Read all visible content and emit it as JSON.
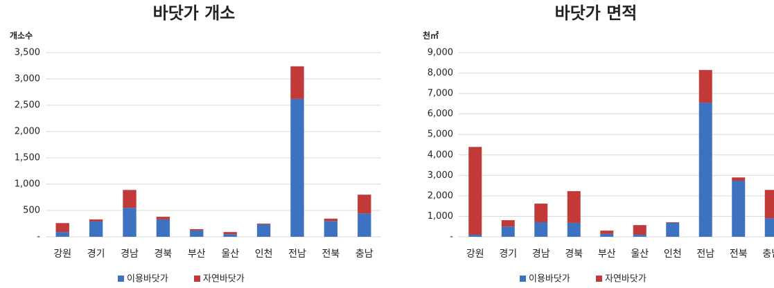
{
  "chart_data": [
    {
      "type": "stacked_bar",
      "title": "바닷가 개소",
      "y_label": "개소수",
      "categories": [
        "강원",
        "경기",
        "경남",
        "경북",
        "부산",
        "울산",
        "인천",
        "전남",
        "전북",
        "충남"
      ],
      "series": [
        {
          "name": "이용바닷가",
          "color": "#3d72c0",
          "values": [
            90,
            290,
            550,
            330,
            120,
            50,
            235,
            2620,
            300,
            445
          ]
        },
        {
          "name": "자연바닷가",
          "color": "#c23a37",
          "values": [
            170,
            40,
            340,
            50,
            25,
            40,
            15,
            620,
            45,
            355
          ]
        }
      ],
      "ylim": [
        0,
        3500
      ],
      "yticks": [
        {
          "value": 0,
          "label": "-"
        },
        500,
        {
          "value": 1000,
          "label": "1,000"
        },
        {
          "value": 1500,
          "label": "1,500"
        },
        {
          "value": 2000,
          "label": "2,000"
        },
        {
          "value": 2500,
          "label": "2,500"
        },
        {
          "value": 3000,
          "label": "3,000"
        },
        {
          "value": 3500,
          "label": "3,500"
        }
      ],
      "grid": true,
      "legend": "bottom"
    },
    {
      "type": "stacked_bar",
      "title": "바닷가 면적",
      "y_label": "천㎡",
      "categories": [
        "강원",
        "경기",
        "경남",
        "경북",
        "부산",
        "울산",
        "인천",
        "전남",
        "전북",
        "충남"
      ],
      "series": [
        {
          "name": "이용바닷가",
          "color": "#3d72c0",
          "values": [
            100,
            500,
            710,
            680,
            140,
            100,
            680,
            6550,
            2740,
            910
          ]
        },
        {
          "name": "자연바닷가",
          "color": "#c23a37",
          "values": [
            4290,
            310,
            910,
            1550,
            160,
            470,
            30,
            1600,
            160,
            1380
          ]
        }
      ],
      "ylim": [
        0,
        9000
      ],
      "yticks": [
        {
          "value": 0,
          "label": "-"
        },
        {
          "value": 1000,
          "label": "1,000"
        },
        {
          "value": 2000,
          "label": "2,000"
        },
        {
          "value": 3000,
          "label": "3,000"
        },
        {
          "value": 4000,
          "label": "4,000"
        },
        {
          "value": 5000,
          "label": "5,000"
        },
        {
          "value": 6000,
          "label": "6,000"
        },
        {
          "value": 7000,
          "label": "7,000"
        },
        {
          "value": 8000,
          "label": "8,000"
        },
        {
          "value": 9000,
          "label": "9,000"
        }
      ],
      "grid": true,
      "legend": "bottom"
    }
  ]
}
